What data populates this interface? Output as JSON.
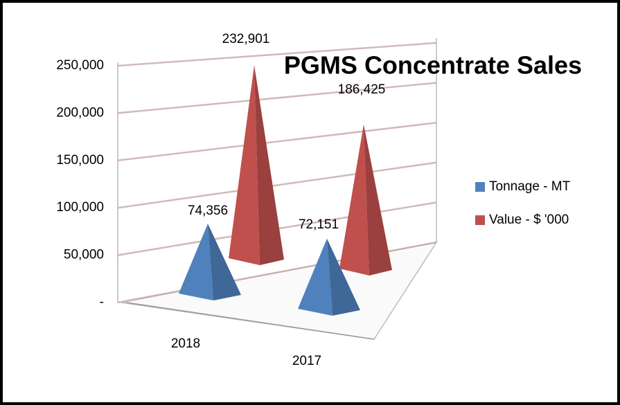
{
  "chart_data": {
    "type": "bar3d",
    "title": "PGMS Concentrate Sales",
    "categories": [
      "2018",
      "2017"
    ],
    "series": [
      {
        "name": "Tonnage  - MT",
        "color": "#4f81bd",
        "values": [
          74356,
          72151
        ],
        "value_labels": [
          "74,356",
          "72,151"
        ]
      },
      {
        "name": "Value - $ '000",
        "color": "#c0504d",
        "values": [
          232901,
          186425
        ],
        "value_labels": [
          "232,901",
          "186,425"
        ]
      }
    ],
    "ylim": [
      0,
      250000
    ],
    "yticks": [
      {
        "value": 0,
        "label": "-"
      },
      {
        "value": 50000,
        "label": "50,000"
      },
      {
        "value": 100000,
        "label": "100,000"
      },
      {
        "value": 150000,
        "label": "150,000"
      },
      {
        "value": 200000,
        "label": "200,000"
      },
      {
        "value": 250000,
        "label": "250,000"
      }
    ],
    "grid": true,
    "legend": "right"
  }
}
